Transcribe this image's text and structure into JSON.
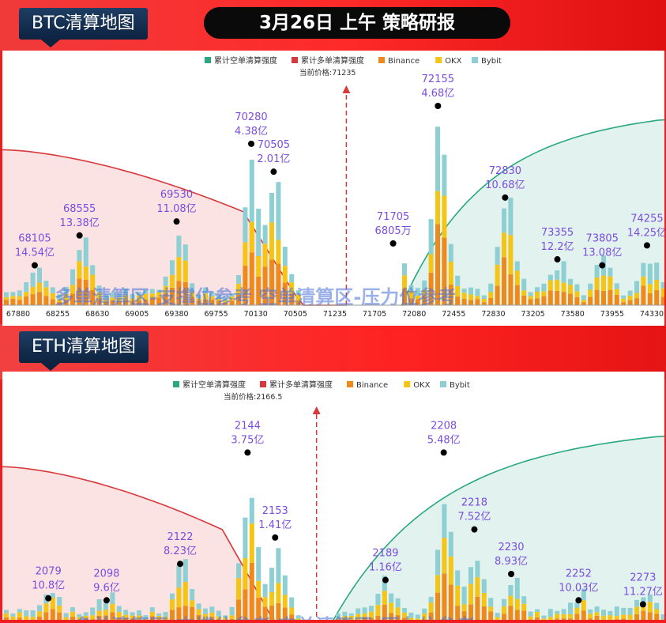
{
  "title": "3月26日 上午 策略研报",
  "legend": [
    "累计空单清算强度",
    "累计多单清算强度",
    "Binance",
    "OKX",
    "Bybit"
  ],
  "colors": {
    "binance": "#ee8a1a",
    "okx": "#f5c516",
    "bybit": "#8dcfd3",
    "short_line": "#2aa87f",
    "long_line": "#d8383b",
    "short_fill": "#e2f2ee",
    "long_fill": "#fbe3e3",
    "label": "#7a4de0",
    "marker": "#d8383b"
  },
  "chart_data": [
    {
      "type": "bar",
      "title": "BTC清算地图",
      "current_price_label": "当前价格:71235",
      "current_price": 71235,
      "x_range": [
        67780,
        74430
      ],
      "tick_labels": [
        "67880",
        "68255",
        "68630",
        "69005",
        "69380",
        "69755",
        "70130",
        "70505",
        "71235",
        "71705",
        "72080",
        "72455",
        "72830",
        "73205",
        "73580",
        "73955",
        "74330"
      ],
      "annotations": [
        {
          "price": 68105,
          "value": "14.54亿",
          "level": 0.2
        },
        {
          "price": 68555,
          "value": "13.38亿",
          "level": 0.35
        },
        {
          "price": 69530,
          "value": "11.08亿",
          "level": 0.42
        },
        {
          "price": 70280,
          "value": "4.38亿",
          "level": 0.81
        },
        {
          "price": 70505,
          "value": "2.01亿",
          "level": 0.67
        },
        {
          "price": 71705,
          "value": "6805万",
          "level": 0.31
        },
        {
          "price": 72155,
          "value": "4.68亿",
          "level": 1.0
        },
        {
          "price": 72830,
          "value": "10.68亿",
          "level": 0.54
        },
        {
          "price": 73355,
          "value": "12.2亿",
          "level": 0.23
        },
        {
          "price": 73805,
          "value": "13.08亿",
          "level": 0.2
        },
        {
          "price": 74255,
          "value": "14.25亿",
          "level": 0.3
        }
      ],
      "overlay_text": "多单清算区-支撑位参考   空单清算区-压力位参考"
    },
    {
      "type": "bar",
      "title": "ETH清算地图",
      "current_price_label": "当前价格:2166.5",
      "current_price": 2166.5,
      "x_range": [
        2064,
        2280
      ],
      "tick_labels": [],
      "annotations": [
        {
          "price": 2079,
          "value": "10.8亿",
          "level": 0.13
        },
        {
          "price": 2098,
          "value": "9.6亿",
          "level": 0.12
        },
        {
          "price": 2122,
          "value": "8.23亿",
          "level": 0.3
        },
        {
          "price": 2144,
          "value": "3.75亿",
          "level": 0.85
        },
        {
          "price": 2153,
          "value": "1.41亿",
          "level": 0.43
        },
        {
          "price": 2189,
          "value": "1.16亿",
          "level": 0.22
        },
        {
          "price": 2208,
          "value": "5.48亿",
          "level": 0.85
        },
        {
          "price": 2218,
          "value": "7.52亿",
          "level": 0.47
        },
        {
          "price": 2230,
          "value": "8.93亿",
          "level": 0.25
        },
        {
          "price": 2252,
          "value": "10.03亿",
          "level": 0.12
        },
        {
          "price": 2273,
          "value": "11.27亿",
          "level": 0.1
        }
      ],
      "overlay_text": "多单清算区-支撑位参考   空单清算区-压力位参考"
    }
  ]
}
